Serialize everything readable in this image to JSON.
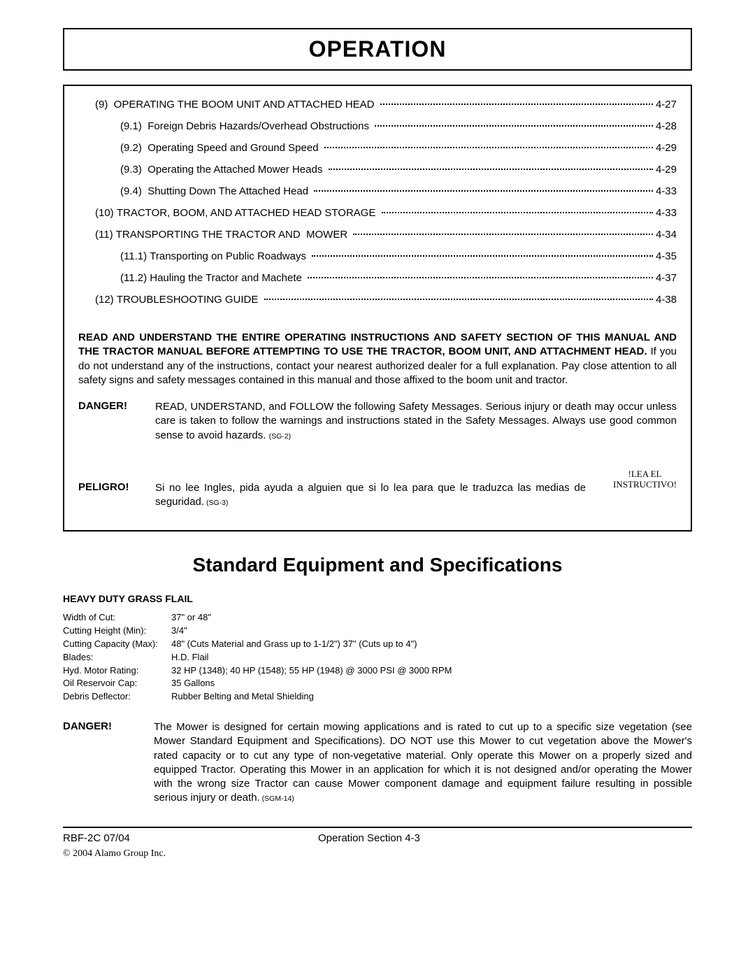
{
  "title": "OPERATION",
  "toc": [
    {
      "indent": 1,
      "num": "(9)  ",
      "label": "OPERATING THE BOOM UNIT AND ATTACHED HEAD ",
      "page": "4-27"
    },
    {
      "indent": 2,
      "num": "(9.1)  ",
      "label": "Foreign Debris Hazards/Overhead Obstructions ",
      "page": "4-28"
    },
    {
      "indent": 2,
      "num": "(9.2)  ",
      "label": "Operating Speed and Ground Speed ",
      "page": "4-29"
    },
    {
      "indent": 2,
      "num": "(9.3)  ",
      "label": "Operating the Attached Mower Heads ",
      "page": "4-29"
    },
    {
      "indent": 2,
      "num": "(9.4)  ",
      "label": "Shutting Down The Attached Head ",
      "page": "4-33"
    },
    {
      "indent": 1,
      "num": "(10) ",
      "label": "TRACTOR, BOOM, AND ATTACHED HEAD STORAGE ",
      "page": "4-33"
    },
    {
      "indent": 1,
      "num": "(11) ",
      "label": "TRANSPORTING THE TRACTOR AND  MOWER ",
      "page": "4-34"
    },
    {
      "indent": 2,
      "num": "(11.1) ",
      "label": "Transporting on Public Roadways ",
      "page": "4-35"
    },
    {
      "indent": 2,
      "num": "(11.2) ",
      "label": "Hauling the Tractor and Machete ",
      "page": "4-37"
    },
    {
      "indent": 1,
      "num": "(12) ",
      "label": "TROUBLESHOOTING GUIDE ",
      "page": "4-38"
    }
  ],
  "warning": {
    "lead_bold": "READ AND UNDERSTAND THE ENTIRE OPERATING INSTRUCTIONS AND SAFETY SECTION OF THIS MANUAL AND THE TRACTOR MANUAL BEFORE ATTEMPTING TO USE THE TRACTOR, BOOM UNIT, AND ATTACHMENT HEAD.",
    "lead_rest": "  If you do not understand any of the instructions, contact your nearest authorized dealer for a full explanation. Pay close attention to all safety signs and safety messages contained in this manual and those affixed to the boom unit and tractor.",
    "danger_label": "DANGER!",
    "danger_text": "READ, UNDERSTAND, and FOLLOW the following Safety Messages.  Serious injury or death may occur unless care is taken to follow the warnings and instructions stated in the Safety Messages.  Always use good common sense to avoid hazards.",
    "danger_sg": "(SG-2)",
    "peligro_label": "PELIGRO!",
    "peligro_text": "Si no lee Ingles, pida ayuda a alguien que si lo lea para que le traduzca las medias de seguridad.",
    "peligro_sg": "  (SG-3)",
    "lea_line1": "!LEA EL",
    "lea_line2": "INSTRUCTIVO!"
  },
  "spec_heading": "Standard Equipment and Specifications",
  "spec_sub": "HEAVY DUTY GRASS FLAIL",
  "specs": [
    {
      "key": "Width of Cut:",
      "val": "37\" or 48\""
    },
    {
      "key": "Cutting Height (Min):",
      "val": "3/4\""
    },
    {
      "key": "Cutting Capacity (Max):",
      "val": "48\" (Cuts Material and Grass up to 1-1/2\") 37\" (Cuts up to 4\")"
    },
    {
      "key": "Blades:",
      "val": "H.D. Flail"
    },
    {
      "key": "Hyd. Motor Rating:",
      "val": "32 HP (1348); 40 HP (1548); 55 HP (1948) @ 3000 PSI @ 3000 RPM"
    },
    {
      "key": "Oil Reservoir Cap:",
      "val": "35 Gallons"
    },
    {
      "key": "Debris Deflector:",
      "val": "Rubber Belting and Metal Shielding"
    }
  ],
  "danger2": {
    "label": "DANGER!",
    "text": "The Mower is designed for certain mowing applications and is rated to cut up to a specific size vegetation (see Mower Standard Equipment and Specifications).  DO NOT use this Mower to cut vegetation above the Mower's rated capacity or to cut any type of non-vegetative material.  Only operate this Mower on a properly sized and equipped Tractor.  Operating this Mower in an application for which it is not designed and/or operating the Mower with the wrong size Tractor can cause Mower component damage and equipment failure resulting in possible serious injury or death.",
    "sg": "  (SGM-14)"
  },
  "footer": {
    "left": "RBF-2C  07/04",
    "center": "Operation Section    4-3",
    "copyright": "© 2004 Alamo Group Inc."
  }
}
